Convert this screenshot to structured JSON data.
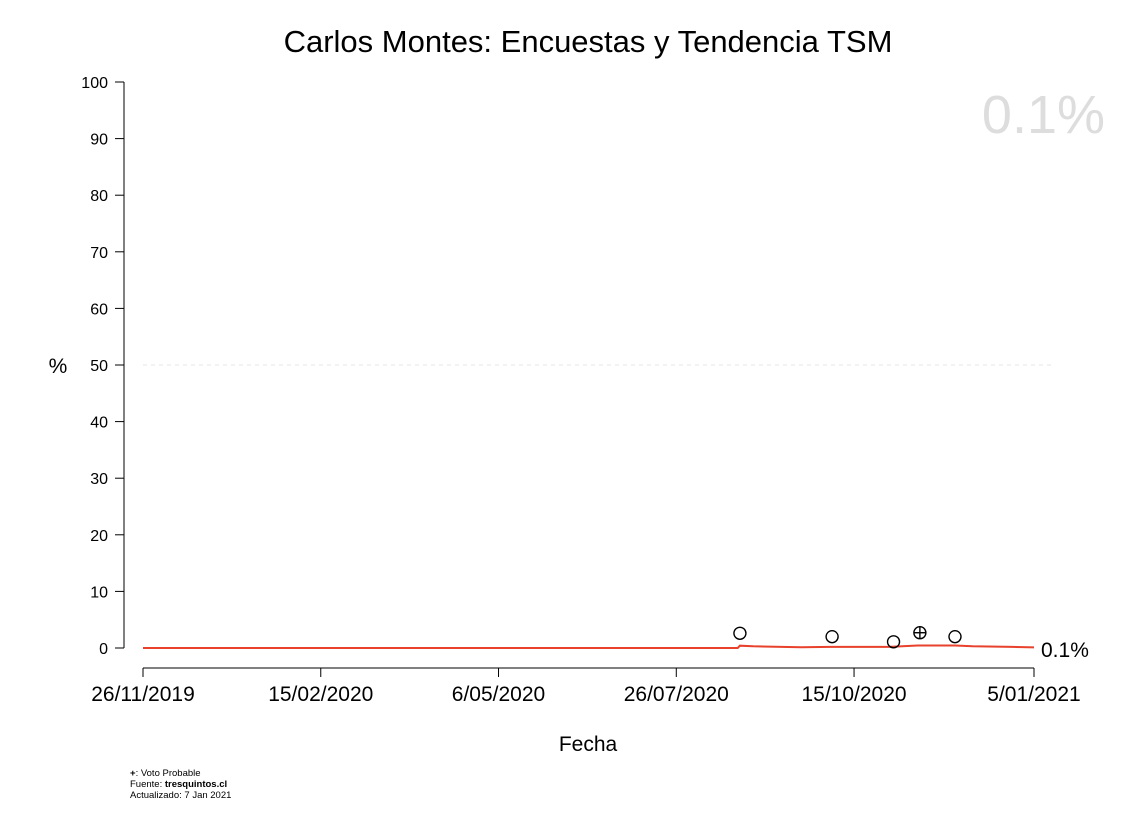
{
  "chart_data": {
    "type": "line",
    "title": "Carlos Montes: Encuestas y Tendencia TSM",
    "xlabel": "Fecha",
    "ylabel": "%",
    "ylim": [
      0,
      100
    ],
    "yticks": [
      0,
      10,
      20,
      30,
      40,
      50,
      60,
      70,
      80,
      90,
      100
    ],
    "x_range_days": [
      0,
      406
    ],
    "x_ticks": [
      {
        "day": 0,
        "label": "26/11/2019"
      },
      {
        "day": 81,
        "label": "15/02/2020"
      },
      {
        "day": 162,
        "label": "6/05/2020"
      },
      {
        "day": 243,
        "label": "26/07/2020"
      },
      {
        "day": 324,
        "label": "15/10/2020"
      },
      {
        "day": 406,
        "label": "5/01/2021"
      }
    ],
    "reference_line": {
      "y": 50,
      "style": "dashed"
    },
    "trend": {
      "name": "Tendencia TSM",
      "color": "#e8412c",
      "points": [
        [
          0,
          0.0
        ],
        [
          271,
          0.0
        ],
        [
          272,
          0.4
        ],
        [
          278,
          0.3
        ],
        [
          300,
          0.15
        ],
        [
          313,
          0.2
        ],
        [
          340,
          0.2
        ],
        [
          353,
          0.45
        ],
        [
          370,
          0.45
        ],
        [
          378,
          0.3
        ],
        [
          396,
          0.2
        ],
        [
          406,
          0.1
        ]
      ]
    },
    "polls": [
      {
        "day": 272,
        "value": 2.6,
        "voto_probable": false
      },
      {
        "day": 314,
        "value": 2.0,
        "voto_probable": false
      },
      {
        "day": 342,
        "value": 1.1,
        "voto_probable": false
      },
      {
        "day": 354,
        "value": 2.7,
        "voto_probable": true
      },
      {
        "day": 370,
        "value": 2.0,
        "voto_probable": false
      }
    ],
    "current_value_label": "0.1%",
    "end_label": "0.1%"
  },
  "footer": {
    "legend_symbol": "+",
    "legend_text": ": Voto Probable",
    "source_prefix": "Fuente: ",
    "source_name": "tresquintos.cl",
    "updated": "Actualizado: 7 Jan 2021"
  }
}
